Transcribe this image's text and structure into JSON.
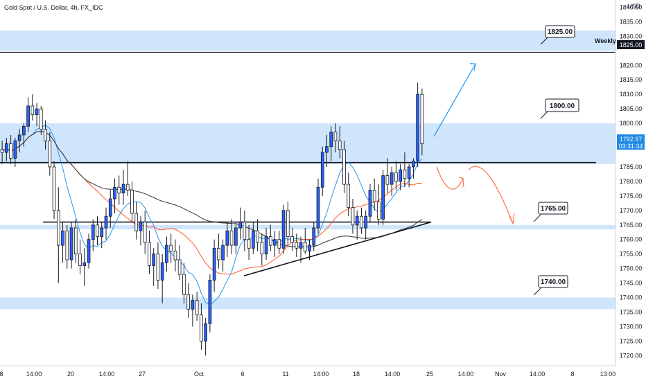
{
  "header": {
    "title": "Gold Spot / U.S. Dollar, 4h, FX_IDC"
  },
  "price_axis": {
    "currency": "USD",
    "ticks": [
      "1840.00",
      "1835.00",
      "1830.00",
      "1825.00",
      "1820.00",
      "1815.00",
      "1810.00",
      "1805.00",
      "1800.00",
      "1795.00",
      "1790.00",
      "1785.00",
      "1780.00",
      "1775.00",
      "1770.00",
      "1765.00",
      "1760.00",
      "1755.00",
      "1750.00",
      "1745.00",
      "1740.00",
      "1735.00",
      "1730.00",
      "1725.00",
      "1720.00"
    ],
    "weekly_badge": "1825.00",
    "last_price": "1792.97",
    "countdown": "03:31:34"
  },
  "time_axis": {
    "labels": [
      "8",
      "14:00",
      "20",
      "14:00",
      "27",
      "Oct",
      "6",
      "11",
      "14:00",
      "18",
      "14:00",
      "25",
      "14:00",
      "Nov",
      "14:00",
      "8",
      "13:00"
    ]
  },
  "annotations": {
    "weekly_label": "Weekly",
    "callouts": [
      "1825.00",
      "1800.00",
      "1765.00",
      "1740.00"
    ]
  },
  "colors": {
    "zone": "#cfe5fb",
    "candle": "#2962ff",
    "ma_fast": "#2196f3",
    "ma_mid": "#ff5722",
    "ma_slow": "#333333",
    "arrow_up": "#2196f3",
    "arrow_down": "#ff7043",
    "last_price_badge": "#1e88e5"
  },
  "chart_data": {
    "type": "candlestick",
    "title": "Gold Spot / U.S. Dollar, 4h, FX_IDC",
    "ylim": [
      1718,
      1843
    ],
    "y_unit": "USD",
    "support_resistance_zones": [
      [
        1825,
        1832
      ],
      [
        1786,
        1800
      ],
      [
        1763.5,
        1765
      ],
      [
        1736,
        1740
      ]
    ],
    "horizontal_lines": [
      1824.5,
      1786.5,
      1766
    ],
    "trendline_from_to": [
      [
        1747.5,
        1766
      ]
    ],
    "level_labels": [
      1825,
      1800,
      1765,
      1740
    ],
    "last_price": 1792.97,
    "candles": [
      {
        "o": 1791,
        "h": 1794,
        "l": 1786,
        "c": 1790
      },
      {
        "o": 1790,
        "h": 1795,
        "l": 1787,
        "c": 1793
      },
      {
        "o": 1793,
        "h": 1796,
        "l": 1786,
        "c": 1788
      },
      {
        "o": 1788,
        "h": 1795,
        "l": 1785,
        "c": 1794
      },
      {
        "o": 1794,
        "h": 1798,
        "l": 1790,
        "c": 1796
      },
      {
        "o": 1796,
        "h": 1800,
        "l": 1792,
        "c": 1799
      },
      {
        "o": 1799,
        "h": 1809,
        "l": 1797,
        "c": 1806
      },
      {
        "o": 1806,
        "h": 1810,
        "l": 1801,
        "c": 1803
      },
      {
        "o": 1803,
        "h": 1807,
        "l": 1799,
        "c": 1805
      },
      {
        "o": 1805,
        "h": 1806,
        "l": 1796,
        "c": 1798
      },
      {
        "o": 1798,
        "h": 1801,
        "l": 1791,
        "c": 1794
      },
      {
        "o": 1794,
        "h": 1797,
        "l": 1782,
        "c": 1785
      },
      {
        "o": 1785,
        "h": 1787,
        "l": 1767,
        "c": 1770
      },
      {
        "o": 1770,
        "h": 1778,
        "l": 1745,
        "c": 1758
      },
      {
        "o": 1758,
        "h": 1766,
        "l": 1752,
        "c": 1763
      },
      {
        "o": 1763,
        "h": 1765,
        "l": 1750,
        "c": 1753
      },
      {
        "o": 1753,
        "h": 1766,
        "l": 1750,
        "c": 1764
      },
      {
        "o": 1764,
        "h": 1767,
        "l": 1752,
        "c": 1755
      },
      {
        "o": 1755,
        "h": 1760,
        "l": 1748,
        "c": 1751
      },
      {
        "o": 1751,
        "h": 1757,
        "l": 1744,
        "c": 1752
      },
      {
        "o": 1752,
        "h": 1762,
        "l": 1750,
        "c": 1760
      },
      {
        "o": 1760,
        "h": 1767,
        "l": 1756,
        "c": 1765
      },
      {
        "o": 1765,
        "h": 1768,
        "l": 1758,
        "c": 1761
      },
      {
        "o": 1761,
        "h": 1766,
        "l": 1757,
        "c": 1764
      },
      {
        "o": 1764,
        "h": 1771,
        "l": 1760,
        "c": 1768
      },
      {
        "o": 1768,
        "h": 1777,
        "l": 1764,
        "c": 1774
      },
      {
        "o": 1774,
        "h": 1781,
        "l": 1769,
        "c": 1778
      },
      {
        "o": 1778,
        "h": 1782,
        "l": 1772,
        "c": 1776
      },
      {
        "o": 1776,
        "h": 1784,
        "l": 1772,
        "c": 1779
      },
      {
        "o": 1779,
        "h": 1787,
        "l": 1775,
        "c": 1777
      },
      {
        "o": 1777,
        "h": 1780,
        "l": 1766,
        "c": 1769
      },
      {
        "o": 1769,
        "h": 1773,
        "l": 1760,
        "c": 1763
      },
      {
        "o": 1763,
        "h": 1768,
        "l": 1758,
        "c": 1766
      },
      {
        "o": 1766,
        "h": 1770,
        "l": 1755,
        "c": 1759
      },
      {
        "o": 1759,
        "h": 1763,
        "l": 1748,
        "c": 1751
      },
      {
        "o": 1751,
        "h": 1757,
        "l": 1744,
        "c": 1755
      },
      {
        "o": 1755,
        "h": 1759,
        "l": 1743,
        "c": 1746
      },
      {
        "o": 1746,
        "h": 1755,
        "l": 1738,
        "c": 1752
      },
      {
        "o": 1752,
        "h": 1761,
        "l": 1749,
        "c": 1758
      },
      {
        "o": 1758,
        "h": 1762,
        "l": 1752,
        "c": 1756
      },
      {
        "o": 1756,
        "h": 1760,
        "l": 1749,
        "c": 1753
      },
      {
        "o": 1753,
        "h": 1758,
        "l": 1746,
        "c": 1748
      },
      {
        "o": 1748,
        "h": 1752,
        "l": 1738,
        "c": 1741
      },
      {
        "o": 1741,
        "h": 1745,
        "l": 1733,
        "c": 1736
      },
      {
        "o": 1736,
        "h": 1741,
        "l": 1730,
        "c": 1739
      },
      {
        "o": 1739,
        "h": 1742,
        "l": 1732,
        "c": 1734
      },
      {
        "o": 1734,
        "h": 1738,
        "l": 1722,
        "c": 1725
      },
      {
        "o": 1725,
        "h": 1733,
        "l": 1720,
        "c": 1731
      },
      {
        "o": 1731,
        "h": 1748,
        "l": 1728,
        "c": 1746
      },
      {
        "o": 1746,
        "h": 1760,
        "l": 1742,
        "c": 1757
      },
      {
        "o": 1757,
        "h": 1762,
        "l": 1750,
        "c": 1753
      },
      {
        "o": 1753,
        "h": 1760,
        "l": 1749,
        "c": 1758
      },
      {
        "o": 1758,
        "h": 1766,
        "l": 1754,
        "c": 1763
      },
      {
        "o": 1763,
        "h": 1767,
        "l": 1755,
        "c": 1758
      },
      {
        "o": 1758,
        "h": 1766,
        "l": 1755,
        "c": 1764
      },
      {
        "o": 1764,
        "h": 1771,
        "l": 1760,
        "c": 1766
      },
      {
        "o": 1766,
        "h": 1770,
        "l": 1756,
        "c": 1760
      },
      {
        "o": 1760,
        "h": 1765,
        "l": 1753,
        "c": 1757
      },
      {
        "o": 1757,
        "h": 1766,
        "l": 1755,
        "c": 1763
      },
      {
        "o": 1763,
        "h": 1767,
        "l": 1756,
        "c": 1759
      },
      {
        "o": 1759,
        "h": 1762,
        "l": 1751,
        "c": 1755
      },
      {
        "o": 1755,
        "h": 1764,
        "l": 1753,
        "c": 1761
      },
      {
        "o": 1761,
        "h": 1765,
        "l": 1756,
        "c": 1758
      },
      {
        "o": 1758,
        "h": 1763,
        "l": 1754,
        "c": 1760
      },
      {
        "o": 1760,
        "h": 1763,
        "l": 1755,
        "c": 1757
      },
      {
        "o": 1757,
        "h": 1772,
        "l": 1755,
        "c": 1770
      },
      {
        "o": 1770,
        "h": 1773,
        "l": 1758,
        "c": 1761
      },
      {
        "o": 1761,
        "h": 1764,
        "l": 1756,
        "c": 1759
      },
      {
        "o": 1759,
        "h": 1762,
        "l": 1754,
        "c": 1757
      },
      {
        "o": 1757,
        "h": 1761,
        "l": 1752,
        "c": 1759
      },
      {
        "o": 1759,
        "h": 1764,
        "l": 1755,
        "c": 1756
      },
      {
        "o": 1756,
        "h": 1760,
        "l": 1753,
        "c": 1758
      },
      {
        "o": 1758,
        "h": 1766,
        "l": 1756,
        "c": 1764
      },
      {
        "o": 1764,
        "h": 1781,
        "l": 1762,
        "c": 1778
      },
      {
        "o": 1778,
        "h": 1792,
        "l": 1775,
        "c": 1790
      },
      {
        "o": 1790,
        "h": 1796,
        "l": 1785,
        "c": 1792
      },
      {
        "o": 1792,
        "h": 1799,
        "l": 1787,
        "c": 1797
      },
      {
        "o": 1797,
        "h": 1800,
        "l": 1790,
        "c": 1794
      },
      {
        "o": 1794,
        "h": 1799,
        "l": 1788,
        "c": 1791
      },
      {
        "o": 1791,
        "h": 1794,
        "l": 1776,
        "c": 1779
      },
      {
        "o": 1779,
        "h": 1783,
        "l": 1768,
        "c": 1771
      },
      {
        "o": 1771,
        "h": 1774,
        "l": 1762,
        "c": 1765
      },
      {
        "o": 1765,
        "h": 1770,
        "l": 1760,
        "c": 1768
      },
      {
        "o": 1768,
        "h": 1771,
        "l": 1762,
        "c": 1764
      },
      {
        "o": 1764,
        "h": 1770,
        "l": 1760,
        "c": 1768
      },
      {
        "o": 1768,
        "h": 1779,
        "l": 1766,
        "c": 1777
      },
      {
        "o": 1777,
        "h": 1781,
        "l": 1770,
        "c": 1773
      },
      {
        "o": 1773,
        "h": 1779,
        "l": 1765,
        "c": 1767
      },
      {
        "o": 1767,
        "h": 1784,
        "l": 1765,
        "c": 1782
      },
      {
        "o": 1782,
        "h": 1788,
        "l": 1776,
        "c": 1779
      },
      {
        "o": 1779,
        "h": 1785,
        "l": 1775,
        "c": 1783
      },
      {
        "o": 1783,
        "h": 1787,
        "l": 1777,
        "c": 1780
      },
      {
        "o": 1780,
        "h": 1786,
        "l": 1777,
        "c": 1784
      },
      {
        "o": 1784,
        "h": 1790,
        "l": 1778,
        "c": 1781
      },
      {
        "o": 1781,
        "h": 1786,
        "l": 1778,
        "c": 1785
      },
      {
        "o": 1785,
        "h": 1788,
        "l": 1781,
        "c": 1787
      },
      {
        "o": 1787,
        "h": 1814,
        "l": 1785,
        "c": 1810
      },
      {
        "o": 1810,
        "h": 1812,
        "l": 1789,
        "c": 1793
      }
    ],
    "moving_averages": [
      {
        "color_key": "ma_fast",
        "period": 8
      },
      {
        "color_key": "ma_mid",
        "period": 20
      },
      {
        "color_key": "ma_slow",
        "period": 55
      }
    ]
  }
}
